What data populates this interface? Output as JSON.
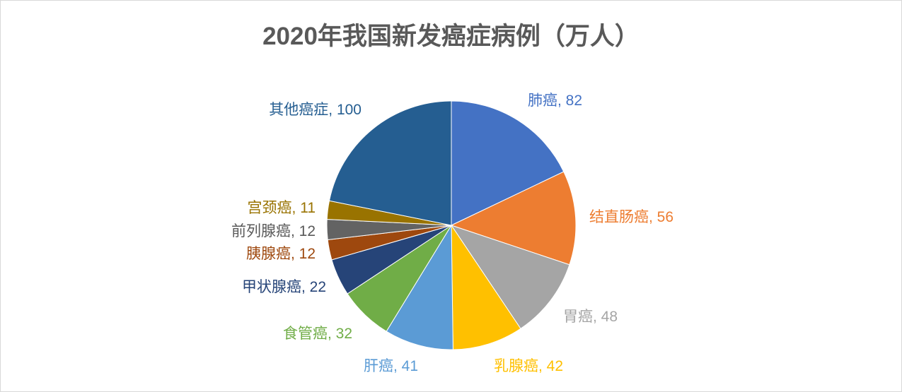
{
  "chart_data": {
    "type": "pie",
    "title": "2020年我国新发癌症病例（万人）",
    "start_angle": "12 o'clock",
    "direction": "clockwise",
    "legend": "none",
    "slices": [
      {
        "name": "肺癌",
        "value": 82,
        "color": "#4472C4",
        "label": "肺癌, 82"
      },
      {
        "name": "结直肠癌",
        "value": 56,
        "color": "#ED7D31",
        "label": "结直肠癌, 56"
      },
      {
        "name": "胃癌",
        "value": 48,
        "color": "#A5A5A5",
        "label": "胃癌, 48"
      },
      {
        "name": "乳腺癌",
        "value": 42,
        "color": "#FFC000",
        "label": "乳腺癌, 42"
      },
      {
        "name": "肝癌",
        "value": 41,
        "color": "#5B9BD5",
        "label": "肝癌, 41"
      },
      {
        "name": "食管癌",
        "value": 32,
        "color": "#70AD47",
        "label": "食管癌, 32"
      },
      {
        "name": "甲状腺癌",
        "value": 22,
        "color": "#264478",
        "label": "甲状腺癌, 22"
      },
      {
        "name": "胰腺癌",
        "value": 12,
        "color": "#9E480E",
        "label": "胰腺癌, 12"
      },
      {
        "name": "前列腺癌",
        "value": 12,
        "color": "#636363",
        "label": "前列腺癌, 12"
      },
      {
        "name": "宫颈癌",
        "value": 11,
        "color": "#997300",
        "label": "宫颈癌, 11"
      },
      {
        "name": "其他癌症",
        "value": 100,
        "color": "#255E91",
        "label": "其他癌症, 100"
      }
    ]
  }
}
